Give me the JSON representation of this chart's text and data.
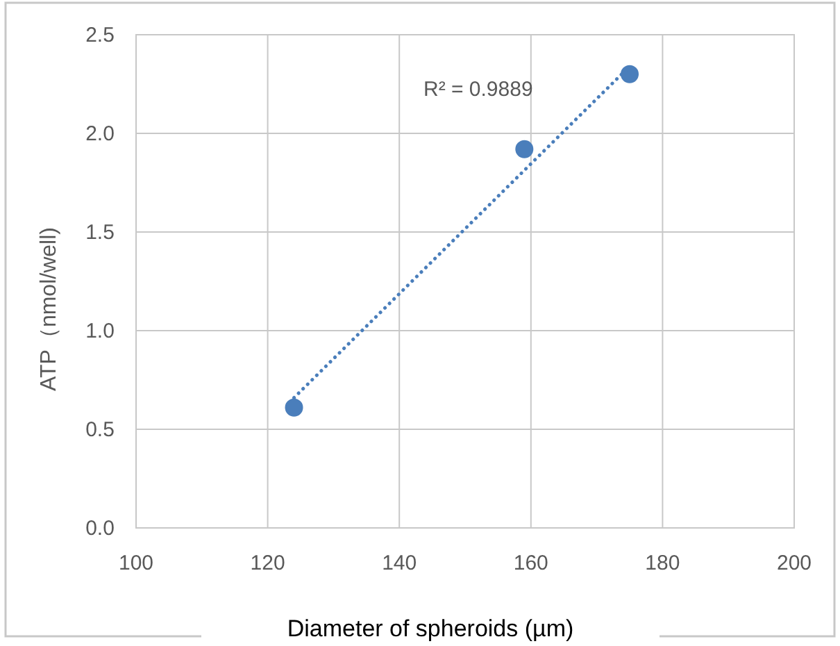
{
  "chart_data": {
    "type": "scatter",
    "xlabel": "Diameter of spheroids (µm)",
    "ylabel": "ATP（nmol/well)",
    "xlim": [
      100,
      200
    ],
    "xticks": [
      100,
      120,
      140,
      160,
      180,
      200
    ],
    "ylim": [
      0,
      2.5
    ],
    "yticks": [
      {
        "value": 0,
        "label": "0.0"
      },
      {
        "value": 0.5,
        "label": "0.5"
      },
      {
        "value": 1,
        "label": "1.0"
      },
      {
        "value": 1.5,
        "label": "1.5"
      },
      {
        "value": 2,
        "label": "2.0"
      },
      {
        "value": 2.5,
        "label": "2.5"
      }
    ],
    "grid": true,
    "annotations": [
      "R² = 0.9889"
    ],
    "series": [
      {
        "color": "#4a7ebb",
        "marker": "circle",
        "x": [
          124,
          159,
          175
        ],
        "values": [
          0.61,
          1.92,
          2.3
        ]
      },
      {
        "type": "line",
        "color": "#4a7ebb",
        "marker": "none",
        "line_style": "dotted",
        "x": [
          124,
          175
        ],
        "values": [
          0.66,
          2.34
        ]
      }
    ]
  }
}
